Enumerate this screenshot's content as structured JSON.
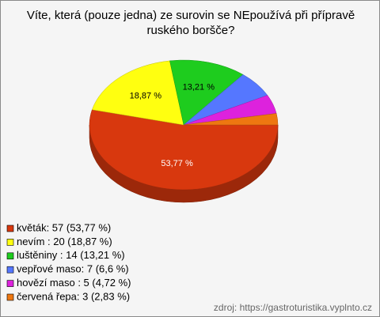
{
  "chart_data": {
    "type": "pie3d",
    "title": "Víte, která (pouze jedna) ze surovin se NEpoužívá při přípravě ruského boršče?",
    "categories": [
      "květák: 57 (53,77 %)",
      "nevím : 20 (18,87 %)",
      "luštěniny : 14 (13,21 %)",
      "vepřové maso: 7 (6,6 %)",
      "hovězí maso : 5 (4,72 %)",
      "červená řepa: 3 (2,83 %)"
    ],
    "values": [
      53.77,
      18.87,
      13.21,
      6.6,
      4.72,
      2.83
    ],
    "value_labels": [
      "53,77 %",
      "18,87 %",
      "13,21 %",
      null,
      null,
      null
    ],
    "colors": [
      "#d8380e",
      "#ffff10",
      "#1ecc1e",
      "#5577ff",
      "#dd22dd",
      "#ee7711"
    ],
    "source": "zdroj: https://gastroturistika.vyplnto.cz"
  }
}
